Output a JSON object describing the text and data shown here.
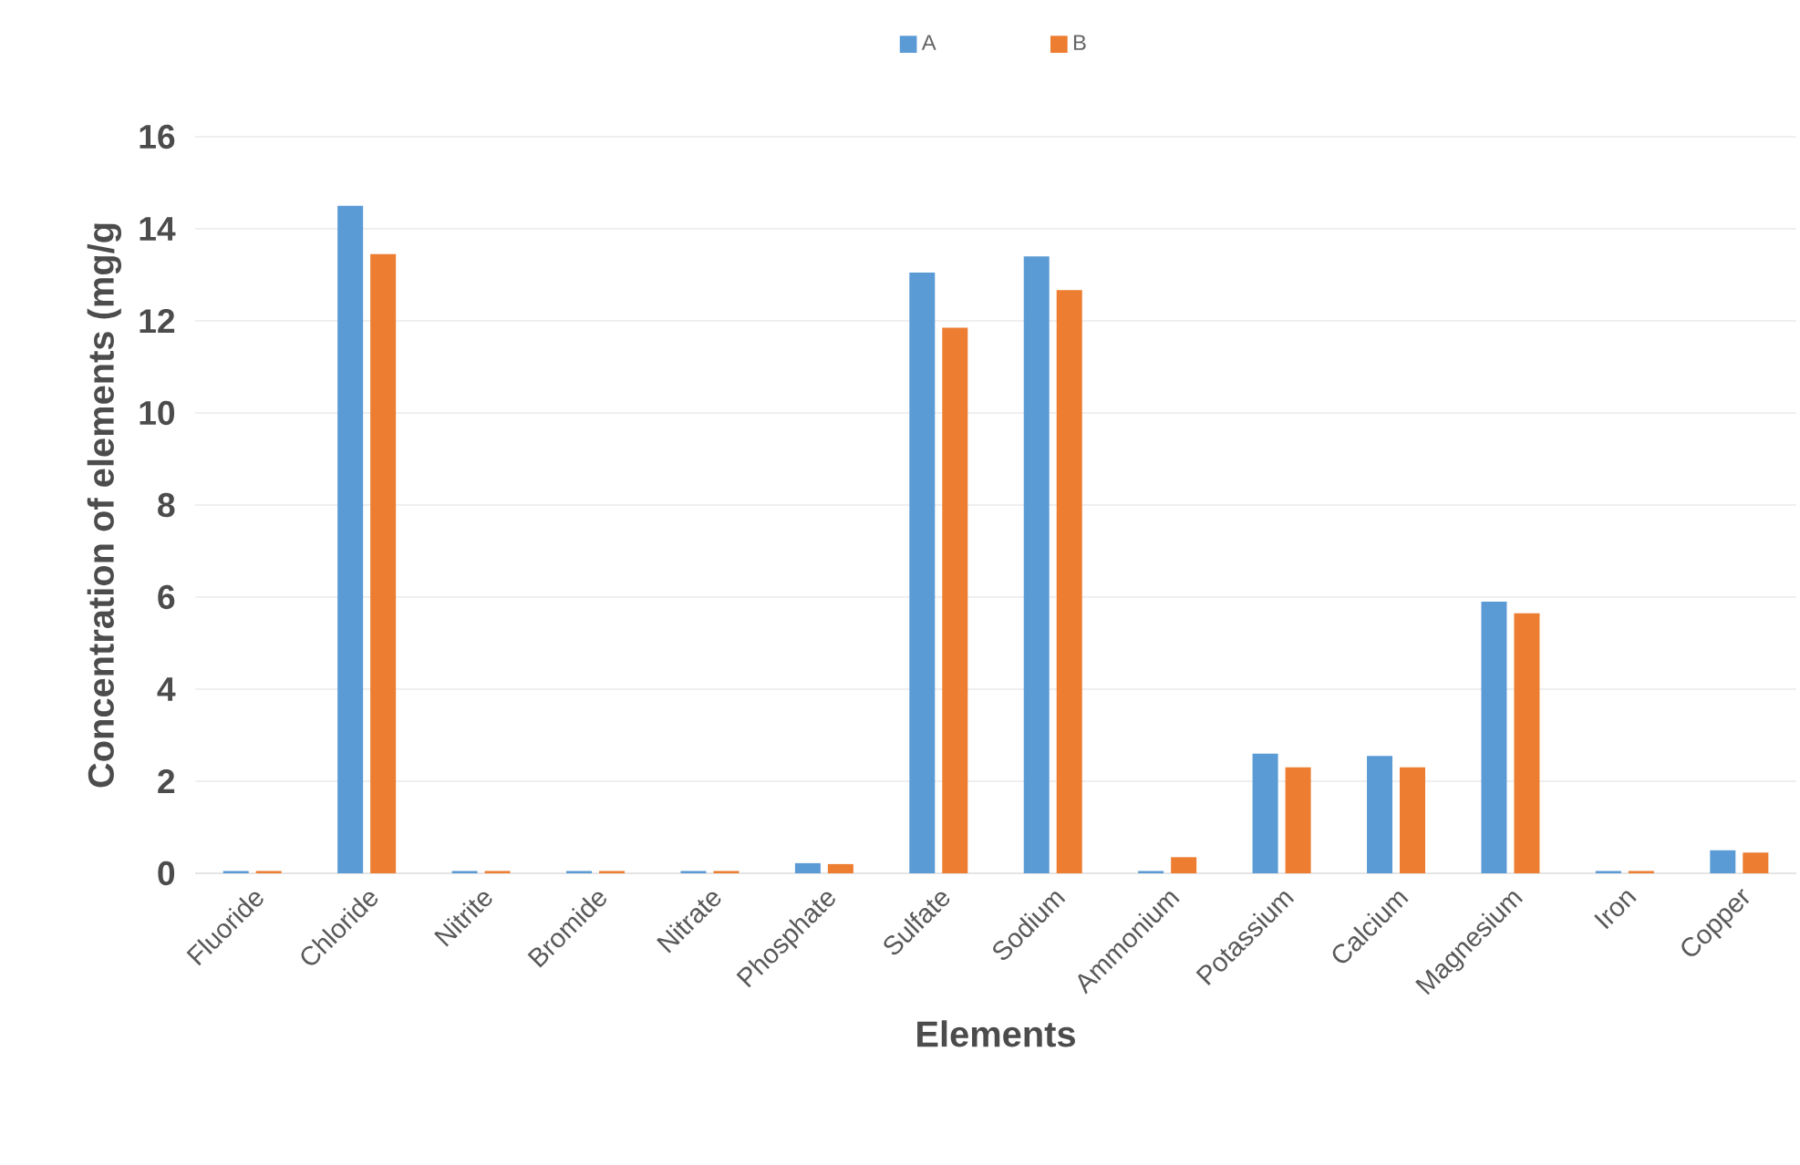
{
  "chart_data": {
    "type": "bar",
    "xlabel": "Elements",
    "ylabel": "Concentration of elements (mg/g",
    "categories": [
      "Fluoride",
      "Chloride",
      "Nitrite",
      "Bromide",
      "Nitrate",
      "Phosphate",
      "Sulfate",
      "Sodium",
      "Ammonium",
      "Potassium",
      "Calcium",
      "Magnesium",
      "Iron",
      "Copper"
    ],
    "series": [
      {
        "name": "A",
        "color": "#5b9bd5",
        "values": [
          0.05,
          14.5,
          0.05,
          0.05,
          0.05,
          0.22,
          13.05,
          13.4,
          0.05,
          2.6,
          2.55,
          5.9,
          0.05,
          0.5
        ]
      },
      {
        "name": "B",
        "color": "#ed7d31",
        "values": [
          0.05,
          13.45,
          0.05,
          0.05,
          0.05,
          0.2,
          11.85,
          12.67,
          0.35,
          2.3,
          2.3,
          5.65,
          0.05,
          0.45
        ]
      }
    ],
    "ylim": [
      0,
      16
    ],
    "yticks": [
      0,
      2,
      4,
      6,
      8,
      10,
      12,
      14,
      16
    ],
    "grid": "y",
    "legend": "top"
  }
}
